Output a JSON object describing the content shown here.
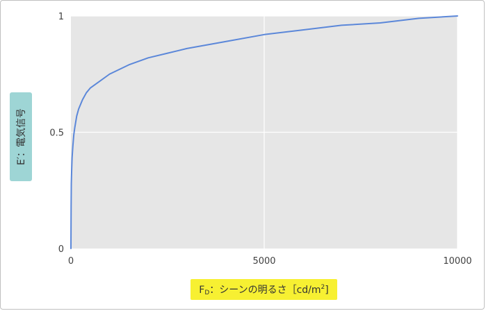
{
  "chart_data": {
    "type": "line",
    "title": "",
    "xlabel": {
      "prefix": "F",
      "sub": "D",
      "middle": "：シーンの明るさ［cd/m",
      "sup": "2",
      "suffix": "]"
    },
    "ylabel": "E′：電気信号",
    "xlim": [
      0,
      10000
    ],
    "ylim": [
      0,
      1
    ],
    "x_ticks": [
      0,
      5000,
      10000
    ],
    "x_tick_labels": [
      "0",
      "5000",
      "10000"
    ],
    "y_ticks": [
      0,
      0.5,
      1
    ],
    "y_tick_labels": [
      "0",
      "0.5",
      "1"
    ],
    "grid": true,
    "series": [
      {
        "color": "#5b87d9",
        "x": [
          0,
          5,
          10,
          20,
          30,
          50,
          75,
          100,
          150,
          200,
          300,
          400,
          500,
          750,
          1000,
          1500,
          2000,
          2500,
          3000,
          4000,
          5000,
          6000,
          7000,
          8000,
          9000,
          10000
        ],
        "y": [
          0,
          0.18,
          0.28,
          0.34,
          0.39,
          0.44,
          0.49,
          0.52,
          0.57,
          0.6,
          0.64,
          0.67,
          0.69,
          0.72,
          0.75,
          0.79,
          0.82,
          0.84,
          0.86,
          0.89,
          0.92,
          0.94,
          0.96,
          0.97,
          0.99,
          1.0
        ]
      }
    ]
  },
  "colors": {
    "plot_background": "#e6e6e6",
    "gridline": "#ffffff",
    "ylabel_box": "#9ed5d5",
    "xlabel_box": "#f7f032"
  }
}
